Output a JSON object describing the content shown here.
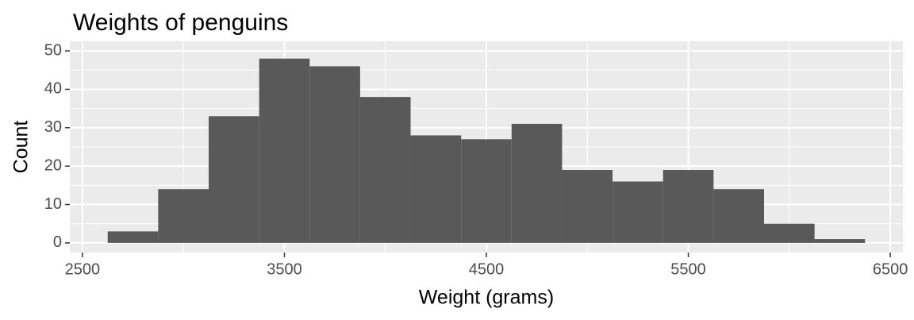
{
  "chart_data": {
    "type": "histogram",
    "title": "Weights of penguins",
    "xlabel": "Weight (grams)",
    "ylabel": "Count",
    "bins": [
      2625,
      2875,
      3125,
      3375,
      3625,
      3875,
      4125,
      4375,
      4625,
      4875,
      5125,
      5375,
      5625,
      5875,
      6125,
      6375
    ],
    "values": [
      3,
      14,
      33,
      48,
      46,
      38,
      28,
      27,
      31,
      19,
      16,
      19,
      14,
      5,
      1
    ],
    "color": "#595959",
    "xlim": [
      2437.5,
      6562.5
    ],
    "xticks": [
      2500,
      3500,
      4500,
      5500,
      6500
    ],
    "xminor": [
      3000,
      4000,
      5000,
      6000
    ],
    "ylim": [
      -2.5,
      52.5
    ],
    "yticks": [
      0,
      10,
      20,
      30,
      40,
      50
    ],
    "yminor": [
      5,
      15,
      25,
      35,
      45
    ],
    "grid": true
  }
}
